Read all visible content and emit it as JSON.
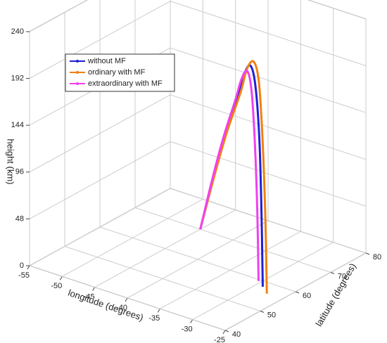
{
  "chart_data": {
    "type": "line3d",
    "xlabel": "longitude (degrees)",
    "ylabel": "latitude (degrees)",
    "zlabel": "height (km)",
    "xlim": [
      -55,
      -25
    ],
    "xticks": [
      -55,
      -50,
      -45,
      -40,
      -35,
      -30,
      -25
    ],
    "ylim": [
      40,
      80
    ],
    "yticks": [
      40,
      50,
      60,
      70,
      80
    ],
    "zlim": [
      0,
      240
    ],
    "zticks": [
      0,
      48,
      96,
      144,
      192,
      240
    ],
    "grid": true,
    "legend": "upper left",
    "series": [
      {
        "name": "without MF",
        "color": "#1f1fd6",
        "x": [
          -45,
          -41.8,
          -38.6,
          -35.4,
          -33.8,
          -32.2,
          -30.9,
          -29.9,
          -29.3,
          -29
        ],
        "y": [
          70,
          67.6,
          65.2,
          62.9,
          61.7,
          60.5,
          59.5,
          58.8,
          58.3,
          58.1
        ],
        "z": [
          0,
          62,
          120,
          172,
          200,
          215,
          200,
          148,
          74,
          0
        ]
      },
      {
        "name": "ordinary with MF",
        "color": "#f08010",
        "x": [
          -45,
          -41.5,
          -38,
          -34.4,
          -32.7,
          -30.9,
          -29.5,
          -28.5,
          -27.8,
          -27.4
        ],
        "y": [
          70,
          67.3,
          64.5,
          61.8,
          60.4,
          59,
          57.9,
          57.1,
          56.6,
          56.3
        ],
        "z": [
          0,
          65,
          125,
          180,
          210,
          225,
          210,
          155,
          78,
          0
        ]
      },
      {
        "name": "extraordinary with MF",
        "color": "#f040f0",
        "x": [
          -45,
          -42.1,
          -39.2,
          -36.2,
          -34.8,
          -33.3,
          -32.2,
          -31.3,
          -30.7,
          -30.4
        ],
        "y": [
          70,
          67.9,
          65.8,
          63.7,
          62.7,
          61.6,
          60.8,
          60.1,
          59.7,
          59.5
        ],
        "z": [
          0,
          60,
          115,
          165,
          190,
          205,
          190,
          140,
          70,
          0
        ]
      }
    ]
  }
}
